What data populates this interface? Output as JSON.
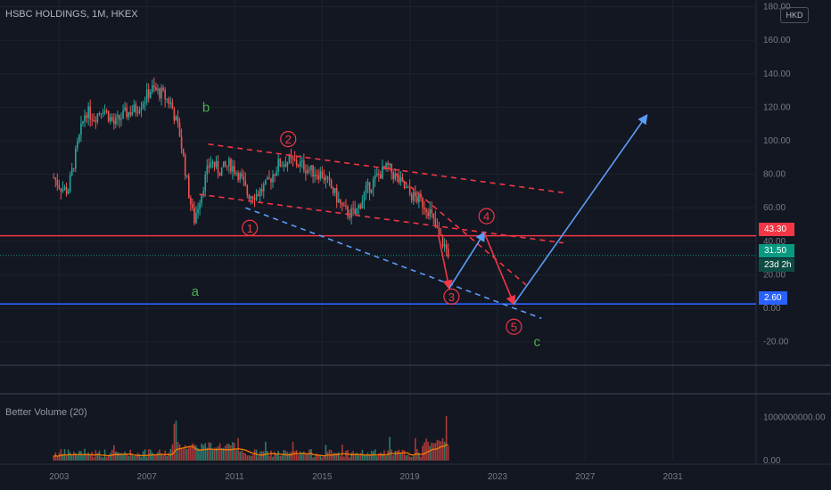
{
  "header": {
    "symbol_title": "HSBC HOLDINGS, 1M, HKEX",
    "currency": "HKD"
  },
  "indicator": {
    "title": "Better Volume (20)"
  },
  "price_tags": {
    "red_level": "43.30",
    "last_price": "31.50",
    "countdown": "23d 2h",
    "blue_level": "2.60"
  },
  "colors": {
    "background": "#131722",
    "grid": "#1e222d",
    "up_candle": "#26a69a",
    "down_candle": "#ef5350",
    "wave_red": "#f23645",
    "wave_blue": "#5b9cf6",
    "label_green": "#4caf50",
    "volume_ma": "#f57c00"
  },
  "chart_data": {
    "type": "candlestick",
    "x_axis": {
      "ticks": [
        "2003",
        "2007",
        "2011",
        "2015",
        "2019",
        "2023",
        "2027",
        "2031"
      ],
      "range": [
        2000.3,
        2034.8
      ]
    },
    "y_axis": {
      "ticks": [
        "180.00",
        "160.00",
        "140.00",
        "120.00",
        "100.00",
        "80.00",
        "60.00",
        "40.00",
        "20.00",
        "0.00",
        "-20.00"
      ],
      "range": [
        -34,
        184
      ]
    },
    "price_series_approx": [
      [
        2002.75,
        78
      ],
      [
        2003.1,
        72
      ],
      [
        2003.4,
        70
      ],
      [
        2003.8,
        95
      ],
      [
        2004.2,
        118
      ],
      [
        2004.6,
        114
      ],
      [
        2005.0,
        120
      ],
      [
        2005.5,
        110
      ],
      [
        2006.0,
        116
      ],
      [
        2006.5,
        119
      ],
      [
        2006.9,
        125
      ],
      [
        2007.2,
        131
      ],
      [
        2007.7,
        128
      ],
      [
        2008.1,
        122
      ],
      [
        2008.5,
        104
      ],
      [
        2008.9,
        70
      ],
      [
        2009.15,
        52
      ],
      [
        2009.5,
        70
      ],
      [
        2009.9,
        88
      ],
      [
        2010.3,
        82
      ],
      [
        2010.8,
        86
      ],
      [
        2011.2,
        80
      ],
      [
        2011.6,
        68
      ],
      [
        2012.0,
        68
      ],
      [
        2012.5,
        74
      ],
      [
        2013.0,
        86
      ],
      [
        2013.5,
        88
      ],
      [
        2014.0,
        86
      ],
      [
        2014.5,
        82
      ],
      [
        2015.0,
        80
      ],
      [
        2015.5,
        70
      ],
      [
        2016.0,
        58
      ],
      [
        2016.5,
        56
      ],
      [
        2017.0,
        70
      ],
      [
        2017.6,
        80
      ],
      [
        2018.0,
        84
      ],
      [
        2018.5,
        76
      ],
      [
        2019.0,
        68
      ],
      [
        2019.5,
        64
      ],
      [
        2019.9,
        58
      ],
      [
        2020.3,
        44
      ],
      [
        2020.8,
        32
      ]
    ],
    "levels": [
      {
        "name": "43.30",
        "value": 43.3,
        "color": "#f23645"
      },
      {
        "name": "2.60",
        "value": 2.6,
        "color": "#2962ff"
      }
    ],
    "annotations": [
      {
        "label": "a",
        "x": 2009.2,
        "y": 10
      },
      {
        "label": "b",
        "x": 2009.7,
        "y": 120
      },
      {
        "label": "c",
        "x": 2024.8,
        "y": -20
      },
      {
        "label": "1",
        "x": 2011.7,
        "y": 48
      },
      {
        "label": "2",
        "x": 2013.45,
        "y": 101
      },
      {
        "label": "3",
        "x": 2020.9,
        "y": 7
      },
      {
        "label": "4",
        "x": 2022.5,
        "y": 55
      },
      {
        "label": "5",
        "x": 2023.75,
        "y": -11
      }
    ],
    "wave_path": [
      [
        2020.8,
        12
      ],
      [
        2022.4,
        45
      ],
      [
        2023.75,
        2.6
      ],
      [
        2029.8,
        115
      ]
    ],
    "volume": {
      "title": "Better Volume (20)",
      "y_ticks": [
        "1000000000.00",
        "0.00"
      ],
      "y_range": [
        0,
        1500000000
      ]
    }
  }
}
